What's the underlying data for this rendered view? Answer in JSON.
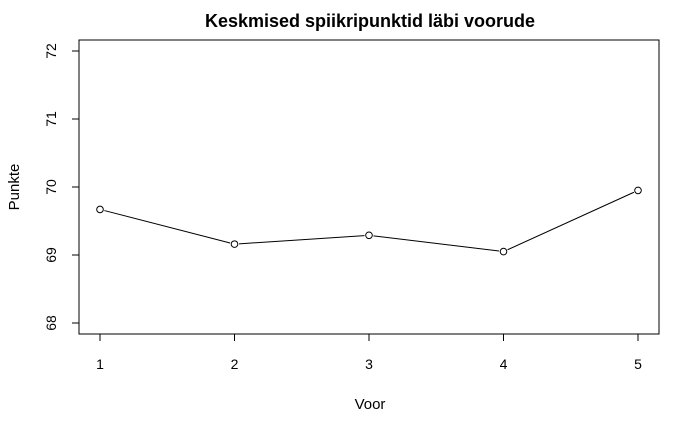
{
  "chart_data": {
    "type": "line",
    "title": "Keskmised spiikripunktid läbi voorude",
    "xlabel": "Voor",
    "ylabel": "Punkte",
    "x": [
      1,
      2,
      3,
      4,
      5
    ],
    "x_tick_labels": [
      "1",
      "2",
      "3",
      "4",
      "5"
    ],
    "series": [
      {
        "values": [
          69.67,
          69.16,
          69.29,
          69.05,
          69.95
        ]
      }
    ],
    "xlim": [
      1,
      5
    ],
    "ylim": [
      68,
      72
    ],
    "y_ticks": [
      68,
      69,
      70,
      71,
      72
    ],
    "y_tick_labels": [
      "68",
      "69",
      "70",
      "71",
      "72"
    ],
    "grid": false,
    "markers": "open-circle",
    "colors": {
      "line": "#000000",
      "marker_fill": "#ffffff"
    }
  }
}
